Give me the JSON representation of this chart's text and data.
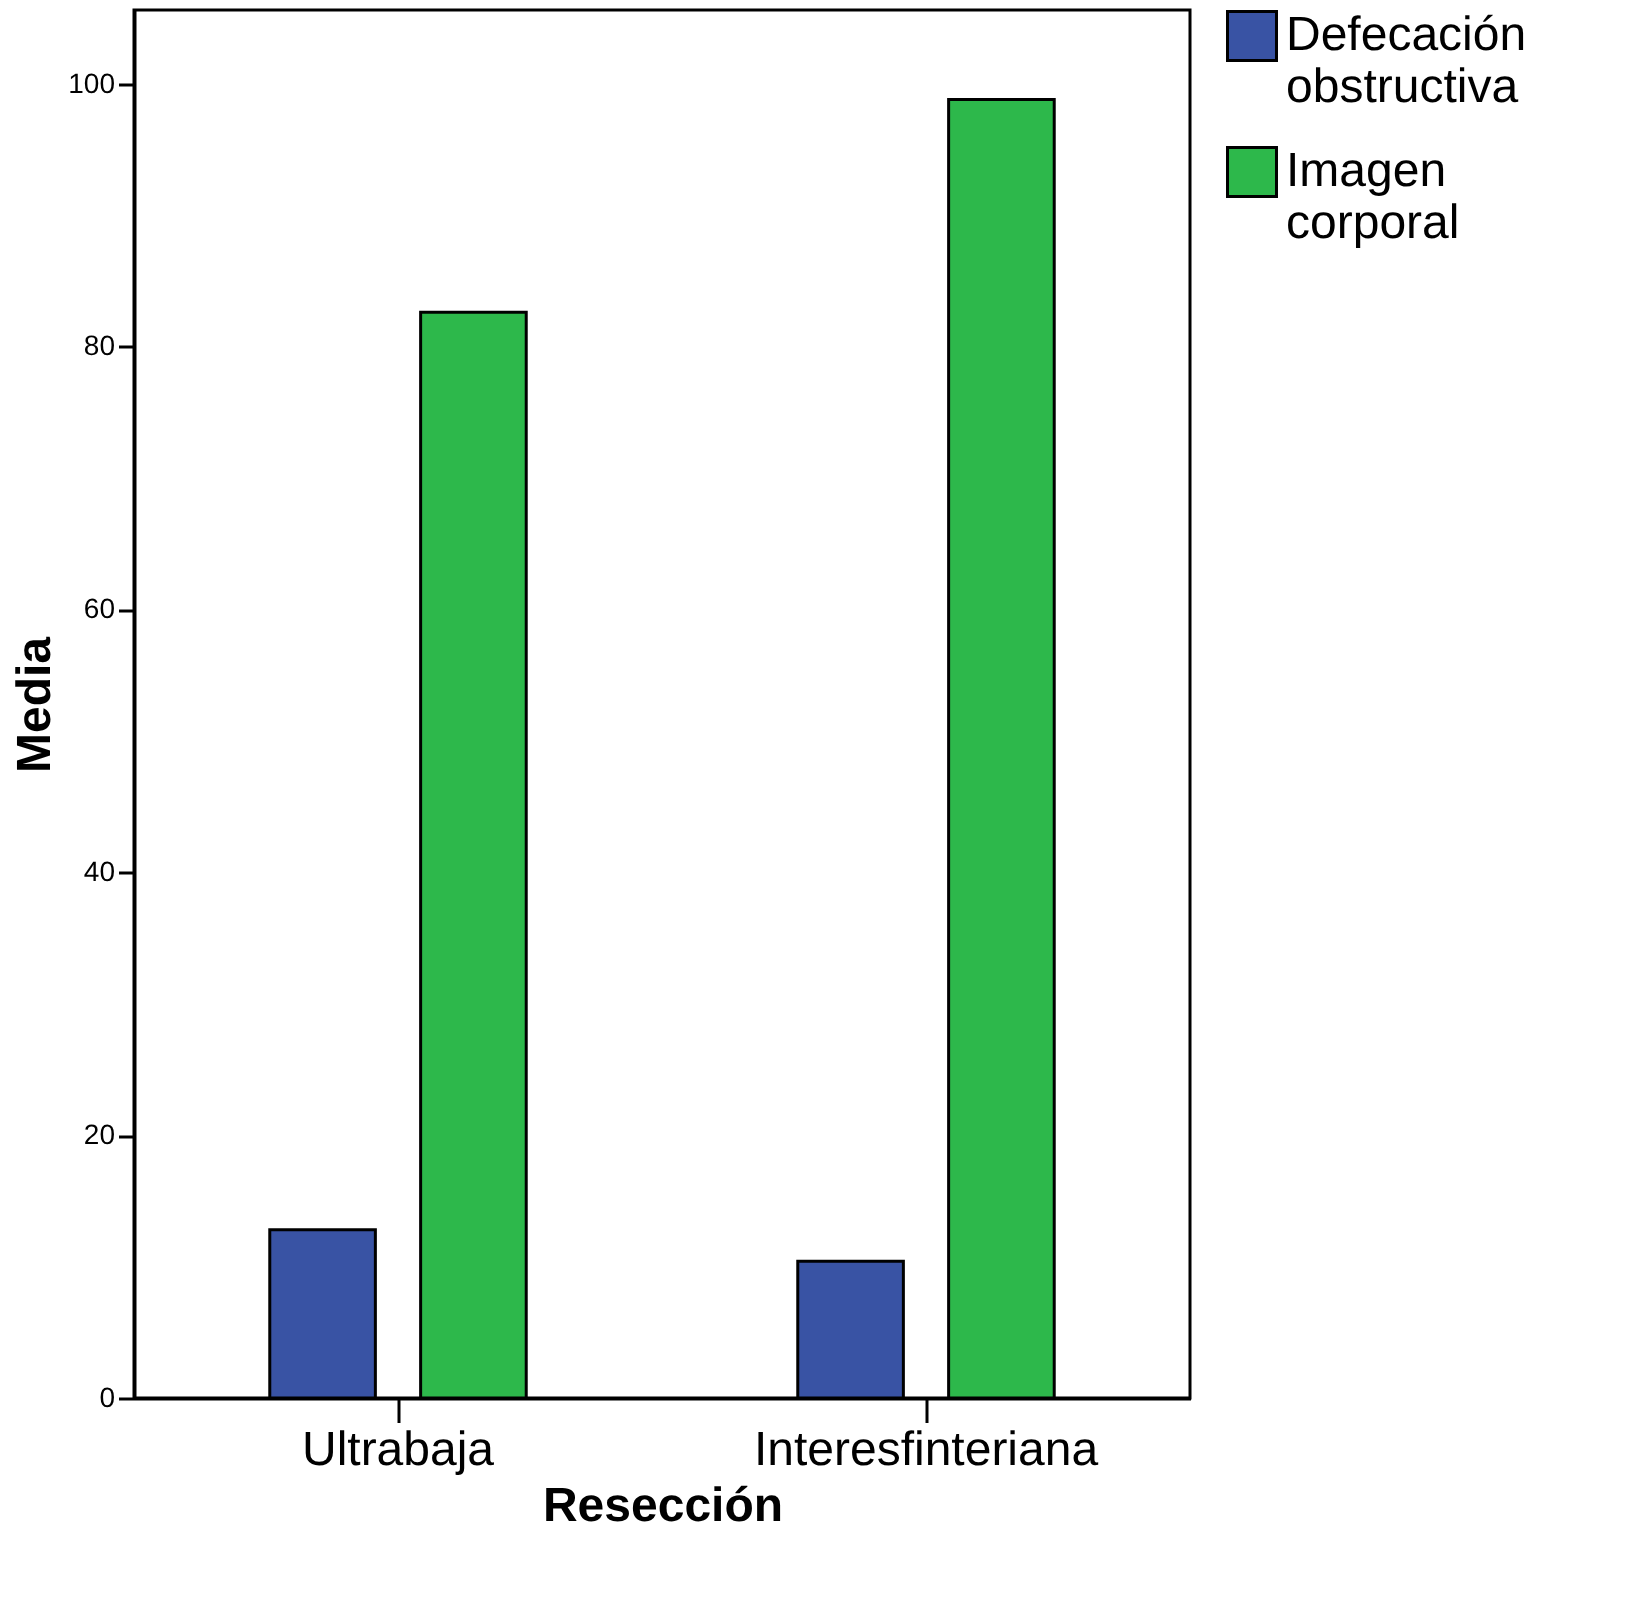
{
  "chart_data": {
    "type": "bar",
    "xlabel": "Resección",
    "ylabel": "Media",
    "categories": [
      "Ultrabaja",
      "Interesfinteriana"
    ],
    "series": [
      {
        "name": "Defecación obstructiva",
        "color": "#3953a4",
        "values": [
          12.8,
          10.4
        ]
      },
      {
        "name": "Imagen corporal",
        "color": "#2db84b",
        "values": [
          82.6,
          98.8
        ]
      }
    ],
    "ylim": [
      0,
      105.6
    ],
    "yticks": [
      0,
      20,
      40,
      60,
      80,
      100
    ],
    "grid": false,
    "legend": "top right"
  }
}
